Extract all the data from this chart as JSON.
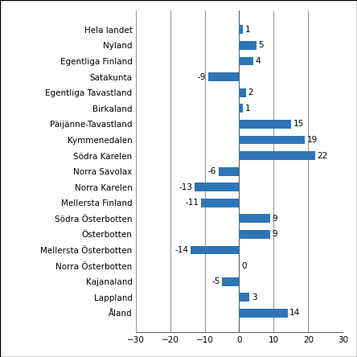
{
  "categories": [
    "Hela landet",
    "Nyland",
    "Egentliga Finland",
    "Satakunta",
    "Egentliga Tavastland",
    "Birkaland",
    "Päijänne-Tavastland",
    "Kymmenedalen",
    "Södra Karelen",
    "Norra Savolax",
    "Norra Karelen",
    "Mellersta Finland",
    "Södra Österbotten",
    "Österbotten",
    "Mellersta Österbotten",
    "Norra Österbotten",
    "Kajanaland",
    "Lappland",
    "Åland"
  ],
  "values": [
    1,
    5,
    4,
    -9,
    2,
    1,
    15,
    19,
    22,
    -6,
    -13,
    -11,
    9,
    9,
    -14,
    0,
    -5,
    3,
    14
  ],
  "bar_color": "#2E75B6",
  "xlim": [
    -30,
    30
  ],
  "xticks": [
    -30,
    -20,
    -10,
    0,
    10,
    20,
    30
  ],
  "grid_color": "#808080",
  "background_color": "#ffffff",
  "label_fontsize": 7.5,
  "tick_fontsize": 7.5,
  "bar_height": 0.55,
  "outer_border_color": "#000000"
}
